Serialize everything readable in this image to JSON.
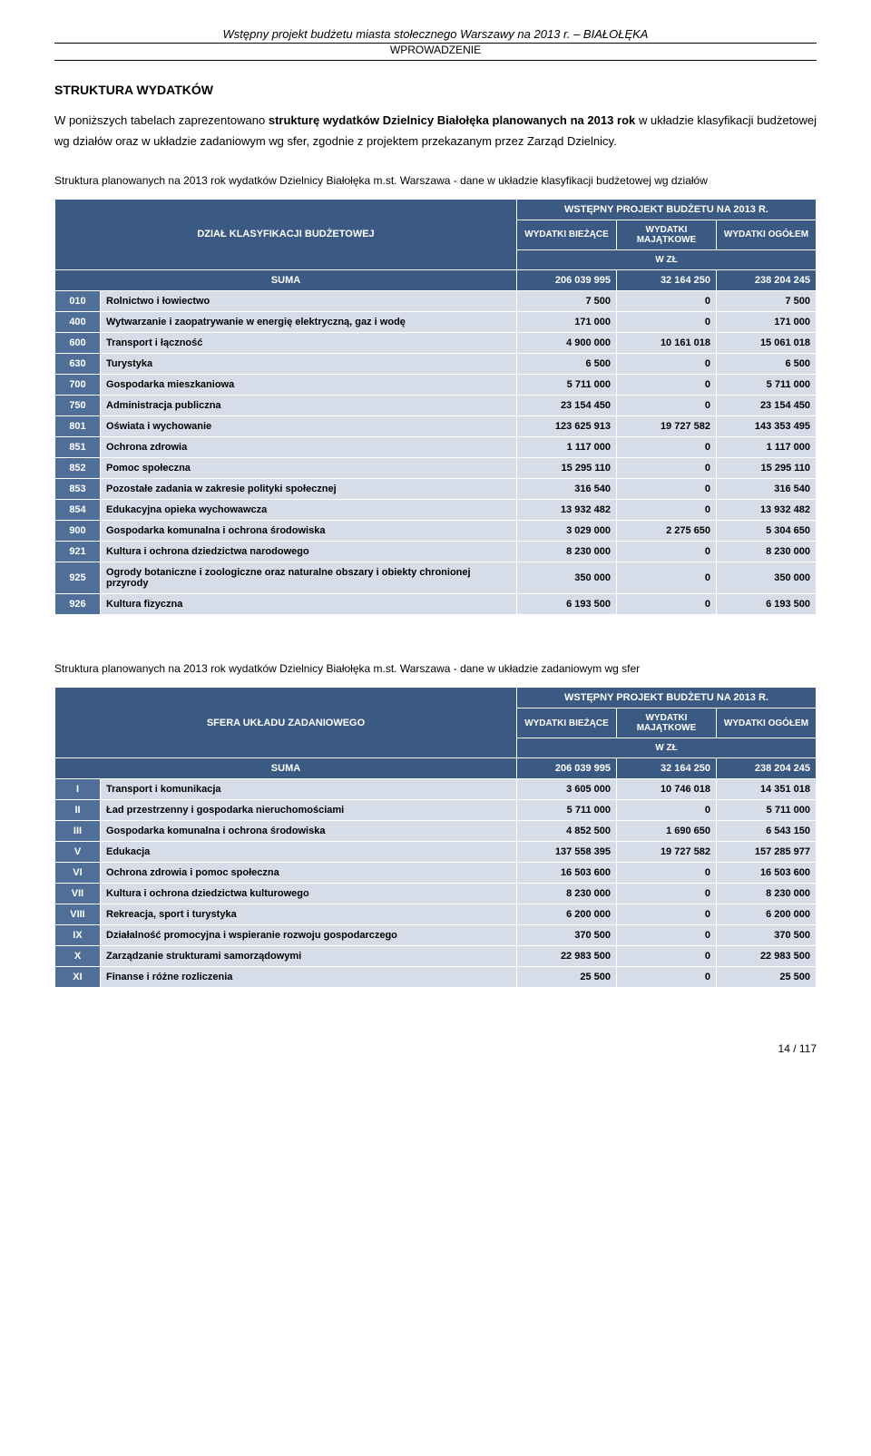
{
  "header": {
    "line1": "Wstępny projekt budżetu miasta stołecznego Warszawy na 2013 r. – BIAŁOŁĘKA",
    "line2": "WPROWADZENIE"
  },
  "section_title": "STRUKTURA WYDATKÓW",
  "intro_para": "W poniższych tabelach zaprezentowano strukturę wydatków Dzielnicy Białołęka planowanych na 2013 rok w układzie klasyfikacji budżetowej wg działów oraz w układzie zadaniowym wg sfer, zgodnie z projektem przekazanym przez Zarząd Dzielnicy.",
  "table1": {
    "caption": "Struktura planowanych na 2013 rok wydatków Dzielnicy Białołęka m.st. Warszawa - dane w układzie klasyfikacji budżetowej wg działów",
    "header_top": "WSTĘPNY PROJEKT BUDŻETU NA 2013 R.",
    "row_header_label": "DZIAŁ KLASYFIKACJI BUDŻETOWEJ",
    "col1": "WYDATKI BIEŻĄCE",
    "col2": "WYDATKI MAJĄTKOWE",
    "col3": "WYDATKI OGÓŁEM",
    "unit": "W ZŁ",
    "sum_label": "SUMA",
    "sum": [
      "206 039 995",
      "32 164 250",
      "238 204 245"
    ],
    "rows": [
      {
        "code": "010",
        "label": "Rolnictwo i łowiectwo",
        "v": [
          "7 500",
          "0",
          "7 500"
        ]
      },
      {
        "code": "400",
        "label": "Wytwarzanie i zaopatrywanie w energię elektryczną, gaz  i wodę",
        "v": [
          "171 000",
          "0",
          "171 000"
        ]
      },
      {
        "code": "600",
        "label": "Transport i łączność",
        "v": [
          "4 900 000",
          "10 161 018",
          "15 061 018"
        ]
      },
      {
        "code": "630",
        "label": "Turystyka",
        "v": [
          "6 500",
          "0",
          "6 500"
        ]
      },
      {
        "code": "700",
        "label": "Gospodarka mieszkaniowa",
        "v": [
          "5 711 000",
          "0",
          "5 711 000"
        ]
      },
      {
        "code": "750",
        "label": "Administracja publiczna",
        "v": [
          "23 154 450",
          "0",
          "23 154 450"
        ]
      },
      {
        "code": "801",
        "label": "Oświata i wychowanie",
        "v": [
          "123 625 913",
          "19 727 582",
          "143 353 495"
        ]
      },
      {
        "code": "851",
        "label": "Ochrona zdrowia",
        "v": [
          "1 117 000",
          "0",
          "1 117 000"
        ]
      },
      {
        "code": "852",
        "label": "Pomoc społeczna",
        "v": [
          "15 295 110",
          "0",
          "15 295 110"
        ]
      },
      {
        "code": "853",
        "label": "Pozostałe zadania w zakresie polityki społecznej",
        "v": [
          "316 540",
          "0",
          "316 540"
        ]
      },
      {
        "code": "854",
        "label": "Edukacyjna opieka wychowawcza",
        "v": [
          "13 932 482",
          "0",
          "13 932 482"
        ]
      },
      {
        "code": "900",
        "label": "Gospodarka komunalna i ochrona środowiska",
        "v": [
          "3 029 000",
          "2 275 650",
          "5 304 650"
        ]
      },
      {
        "code": "921",
        "label": "Kultura i ochrona dziedzictwa narodowego",
        "v": [
          "8 230 000",
          "0",
          "8 230 000"
        ]
      },
      {
        "code": "925",
        "label": "Ogrody botaniczne i zoologiczne oraz naturalne obszary i obiekty chronionej przyrody",
        "v": [
          "350 000",
          "0",
          "350 000"
        ]
      },
      {
        "code": "926",
        "label": "Kultura fizyczna",
        "v": [
          "6 193 500",
          "0",
          "6 193 500"
        ]
      }
    ]
  },
  "table2": {
    "caption": "Struktura planowanych na 2013 rok wydatków Dzielnicy Białołęka m.st. Warszawa - dane w układzie zadaniowym wg sfer",
    "header_top": "WSTĘPNY PROJEKT BUDŻETU NA 2013 R.",
    "row_header_label": "SFERA UKŁADU ZADANIOWEGO",
    "col1": "WYDATKI BIEŻĄCE",
    "col2": "WYDATKI MAJĄTKOWE",
    "col3": "WYDATKI OGÓŁEM",
    "unit": "W ZŁ",
    "sum_label": "SUMA",
    "sum": [
      "206 039 995",
      "32 164 250",
      "238 204 245"
    ],
    "rows": [
      {
        "code": "I",
        "label": "Transport i komunikacja",
        "v": [
          "3 605 000",
          "10 746 018",
          "14 351 018"
        ]
      },
      {
        "code": "II",
        "label": "Ład przestrzenny i gospodarka nieruchomościami",
        "v": [
          "5 711 000",
          "0",
          "5 711 000"
        ]
      },
      {
        "code": "III",
        "label": "Gospodarka komunalna i ochrona środowiska",
        "v": [
          "4 852 500",
          "1 690 650",
          "6 543 150"
        ]
      },
      {
        "code": "V",
        "label": "Edukacja",
        "v": [
          "137 558 395",
          "19 727 582",
          "157 285 977"
        ]
      },
      {
        "code": "VI",
        "label": "Ochrona zdrowia i pomoc społeczna",
        "v": [
          "16 503 600",
          "0",
          "16 503 600"
        ]
      },
      {
        "code": "VII",
        "label": "Kultura i ochrona dziedzictwa kulturowego",
        "v": [
          "8 230 000",
          "0",
          "8 230 000"
        ]
      },
      {
        "code": "VIII",
        "label": "Rekreacja, sport i turystyka",
        "v": [
          "6 200 000",
          "0",
          "6 200 000"
        ]
      },
      {
        "code": "IX",
        "label": "Działalność promocyjna i wspieranie rozwoju gospodarczego",
        "v": [
          "370 500",
          "0",
          "370 500"
        ]
      },
      {
        "code": "X",
        "label": "Zarządzanie strukturami samorządowymi",
        "v": [
          "22 983 500",
          "0",
          "22 983 500"
        ]
      },
      {
        "code": "XI",
        "label": "Finanse i różne rozliczenia",
        "v": [
          "25 500",
          "0",
          "25 500"
        ]
      }
    ]
  },
  "page_number": "14 / 117"
}
